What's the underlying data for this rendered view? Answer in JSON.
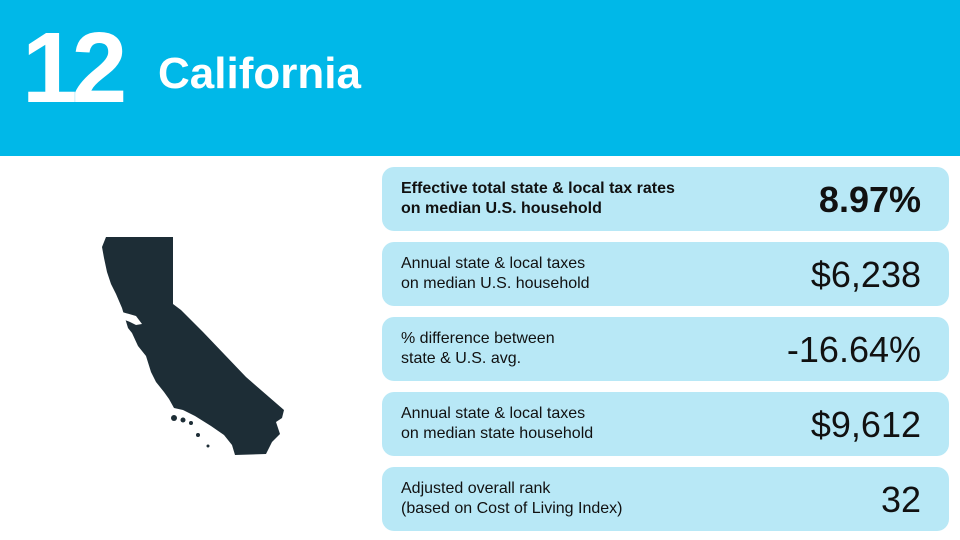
{
  "header": {
    "rank": "12",
    "state": "California"
  },
  "colors": {
    "banner": "#00b8e8",
    "card": "#b8e8f6",
    "map_fill": "#1d2d36"
  },
  "map": {
    "icon": "california-state-silhouette"
  },
  "stats": [
    {
      "label": "Effective total state & local tax rates\non median U.S. household",
      "value": "8.97%"
    },
    {
      "label": "Annual state & local taxes\non median U.S. household",
      "value": "$6,238"
    },
    {
      "label": "% difference between\nstate & U.S. avg.",
      "value": "-16.64%"
    },
    {
      "label": "Annual state & local taxes\non median state household",
      "value": "$9,612"
    },
    {
      "label": "Adjusted overall rank\n(based on Cost of Living Index)",
      "value": "32"
    }
  ]
}
